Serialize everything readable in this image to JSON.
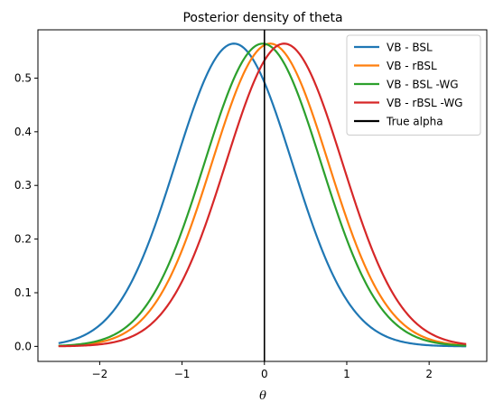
{
  "chart_data": {
    "type": "line",
    "title": "Posterior density of theta",
    "xlabel": "θ",
    "ylabel": "",
    "xlim": [
      -2.75,
      2.7
    ],
    "ylim": [
      -0.028,
      0.59
    ],
    "xticks": [
      -2,
      -1,
      0,
      1,
      2
    ],
    "xtick_labels": [
      "−2",
      "−1",
      "0",
      "1",
      "2"
    ],
    "yticks": [
      0.0,
      0.1,
      0.2,
      0.3,
      0.4,
      0.5
    ],
    "ytick_labels": [
      "0.0",
      "0.1",
      "0.2",
      "0.3",
      "0.4",
      "0.5"
    ],
    "grid": false,
    "legend_position": "top-right",
    "x_range": [
      -2.5,
      2.45
    ],
    "series": [
      {
        "name": "VB - BSL",
        "type": "normal",
        "mean": -0.37,
        "sd": 0.707,
        "color": "#1f77b4"
      },
      {
        "name": "VB - rBSL",
        "type": "normal",
        "mean": 0.07,
        "sd": 0.707,
        "color": "#ff7f0e"
      },
      {
        "name": "VB - BSL -WG",
        "type": "normal",
        "mean": -0.02,
        "sd": 0.707,
        "color": "#2ca02c"
      },
      {
        "name": "VB - rBSL -WG",
        "type": "normal",
        "mean": 0.24,
        "sd": 0.707,
        "color": "#d62728"
      }
    ],
    "reference_lines": [
      {
        "name": "True alpha",
        "orientation": "vertical",
        "x": 0.0,
        "color": "#000000"
      }
    ]
  }
}
